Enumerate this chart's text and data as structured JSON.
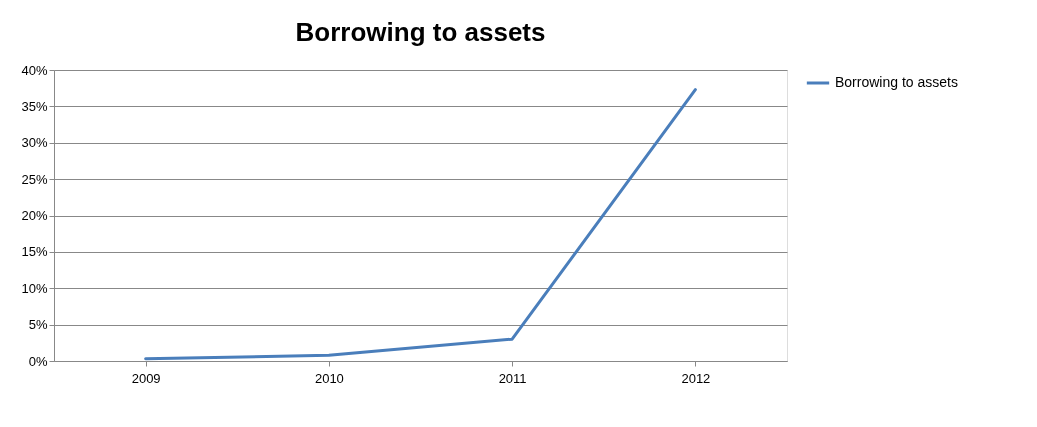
{
  "chart_data": {
    "type": "line",
    "title": "Borrowing to assets",
    "categories": [
      "2009",
      "2010",
      "2011",
      "2012"
    ],
    "series": [
      {
        "name": "Borrowing to assets",
        "color": "#4a7ebb",
        "values": [
          0.3,
          0.8,
          3,
          37.3
        ]
      }
    ],
    "ylim": [
      0,
      40
    ],
    "yticks": [
      {
        "value": 0,
        "label": "0%"
      },
      {
        "value": 5,
        "label": "5%"
      },
      {
        "value": 10,
        "label": "10%"
      },
      {
        "value": 15,
        "label": "15%"
      },
      {
        "value": 20,
        "label": "20%"
      },
      {
        "value": 25,
        "label": "25%"
      },
      {
        "value": 30,
        "label": "30%"
      },
      {
        "value": 35,
        "label": "35%"
      },
      {
        "value": 40,
        "label": "40%"
      }
    ],
    "grid": "y",
    "legend": "right",
    "marker": "none",
    "line_style": "solid"
  }
}
